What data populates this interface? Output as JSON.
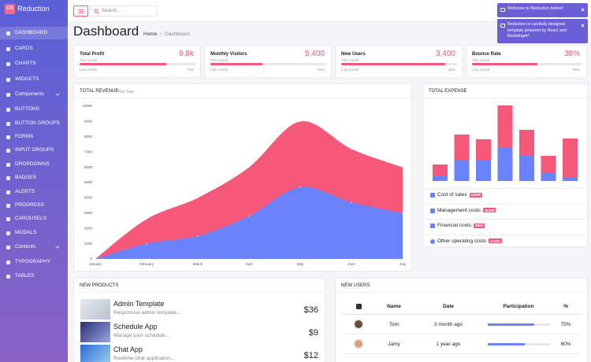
{
  "sidebar": {
    "brand_icon": "CR",
    "brand": "Reduction",
    "items": [
      "DASHBOARD",
      "CARDS",
      "CHARTS",
      "WIDGETS",
      "Components",
      "BUTTONS",
      "BUTTON GROUPS",
      "FORMS",
      "INPUT GROUPS",
      "DROPDOWNS",
      "BADGES",
      "ALERTS",
      "PROGRESS",
      "CAROUSELS",
      "MODALS",
      "Contents",
      "TYPOGRAPHY",
      "TABLES"
    ]
  },
  "topbar": {
    "search_placeholder": "Search..."
  },
  "notifications": [
    "Welcome to Reduction Admin!",
    "Reduction is carefully designed template powered by React and Bootstrap4!"
  ],
  "page": {
    "title": "Dashboard",
    "breadcrumb": [
      "Home",
      "Dashboard"
    ],
    "breadcrumb_separator": "/"
  },
  "stats": [
    {
      "title": "Total Profit",
      "value": "9.8k",
      "period": "This month",
      "compare": "Last month",
      "progress": {
        "value": 75,
        "label": "75%"
      }
    },
    {
      "title": "Monthly Visitors",
      "value": "5,400",
      "period": "This month",
      "compare": "Last month",
      "progress": {
        "value": 45,
        "label": "45%"
      }
    },
    {
      "title": "New Users",
      "value": "3,400",
      "period": "This month",
      "compare": "Last month",
      "progress": {
        "value": 90,
        "label": "90%"
      }
    },
    {
      "title": "Bounce Rate",
      "value": "38%",
      "period": "This month",
      "compare": "Last month",
      "progress": {
        "value": 60,
        "label": "60%"
      }
    }
  ],
  "chart_data": [
    {
      "type": "area",
      "title": "TOTAL REVENUE",
      "subtitle": "This Year",
      "categories": [
        "January",
        "February",
        "March",
        "April",
        "May",
        "June",
        "July"
      ],
      "series": [
        {
          "color": "#f6587a",
          "values": [
            0,
            2600,
            4000,
            6000,
            9000,
            7200,
            6000
          ]
        },
        {
          "color": "#6a82fb",
          "values": [
            0,
            1000,
            1500,
            2800,
            4700,
            3700,
            3000
          ]
        }
      ],
      "ylim": [
        0,
        10000
      ],
      "yticks": [
        0,
        1000,
        2000,
        3000,
        4000,
        5000,
        6000,
        7000,
        8000,
        9000,
        10000
      ]
    },
    {
      "type": "bar",
      "stacked": true,
      "title": "TOTAL EXPENSE",
      "series": [
        {
          "color": "#6a82fb",
          "values": [
            7,
            27,
            27,
            43,
            33,
            11,
            5
          ]
        },
        {
          "color": "#f6587a",
          "values": [
            14,
            32,
            26,
            53,
            32,
            21,
            49
          ]
        }
      ],
      "ylim": [
        0,
        100
      ],
      "breakdown": [
        {
          "label": "Cost of sales",
          "amount": "$3000"
        },
        {
          "label": "Management costs",
          "amount": "$1200"
        },
        {
          "label": "Financial costs",
          "amount": "$800"
        },
        {
          "label": "Other operating costs",
          "amount": "$2400"
        }
      ]
    }
  ],
  "products": {
    "title": "NEW PRODUCTS",
    "items": [
      {
        "name": "Admin Template",
        "description": "Responsive admin template...",
        "price": "$36"
      },
      {
        "name": "Schedule App",
        "description": "Manage your schedule...",
        "price": "$9"
      },
      {
        "name": "Chat App",
        "description": "Realtime chat application...",
        "price": "$12"
      }
    ]
  },
  "users": {
    "title": "NEW USERS",
    "columns": [
      "Name",
      "Date",
      "Participation",
      "%"
    ],
    "rows": [
      {
        "name": "Tom",
        "date": "3 month ago",
        "participation": {
          "value": 75,
          "label": "75%"
        }
      },
      {
        "name": "Jamy",
        "date": "1 year ago",
        "participation": {
          "value": 60,
          "label": "60%"
        }
      }
    ]
  }
}
